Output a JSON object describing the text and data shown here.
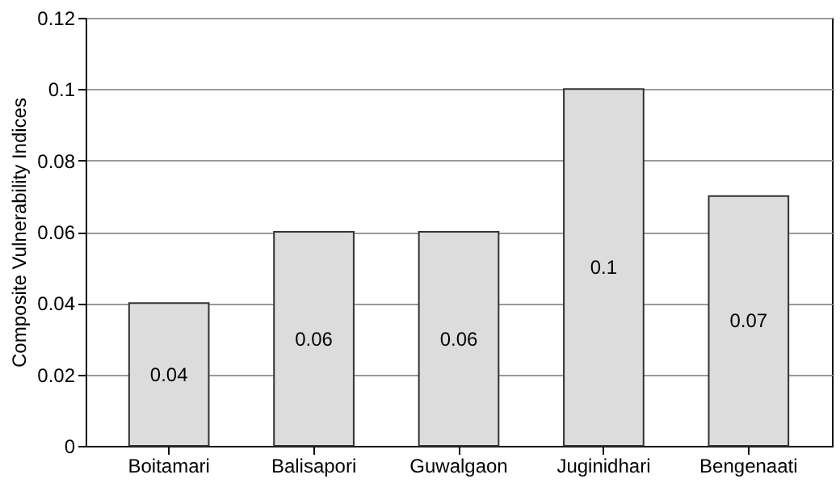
{
  "chart_data": {
    "type": "bar",
    "categories": [
      "Boitamari",
      "Balisapori",
      "Guwalgaon",
      "Juginidhari",
      "Bengenaati"
    ],
    "values": [
      0.04,
      0.06,
      0.06,
      0.1,
      0.07
    ],
    "color": "#dcdcdc",
    "ylabel": "Composite Vulnerability Indices",
    "ylim": [
      0,
      0.12
    ],
    "yticks": [
      0,
      0.02,
      0.04,
      0.06,
      0.08,
      0.1,
      0.12
    ],
    "grid": "y",
    "data_labels": true
  }
}
